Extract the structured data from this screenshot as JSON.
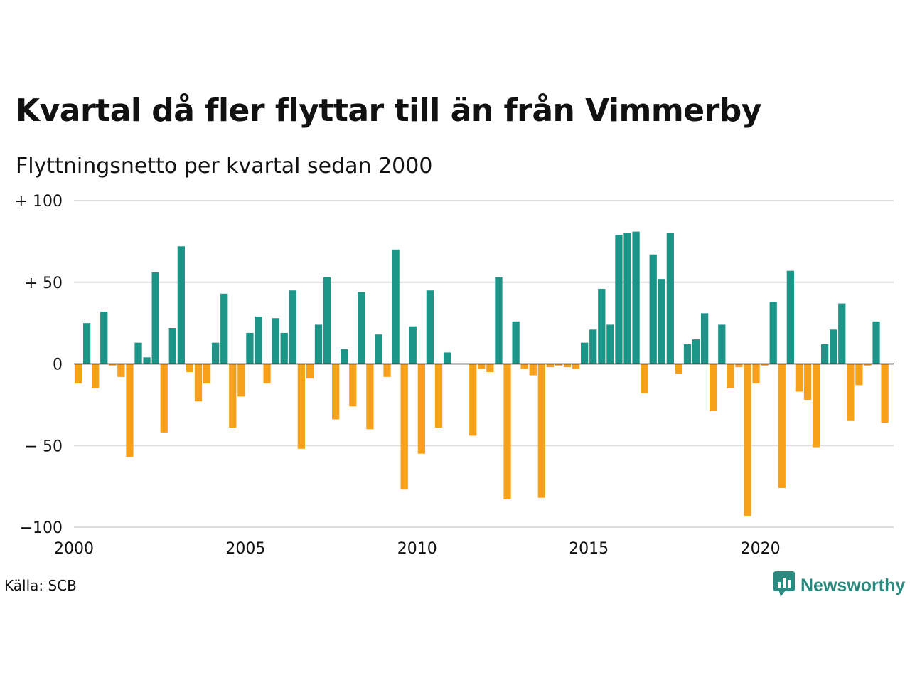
{
  "title": "Kvartal då fler flyttar till än från Vimmerby",
  "subtitle": "Flyttningsnetto per kvartal sedan 2000",
  "source": "Källa: SCB",
  "logo": {
    "text": "Newsworthy",
    "icon": "newsworthy-chart-icon"
  },
  "colors": {
    "positive": "#1a9588",
    "negative": "#f7a11b",
    "grid": "#dddddd",
    "zero": "#111111",
    "brand": "#2a8a80"
  },
  "chart_data": {
    "type": "bar",
    "xlabel": "",
    "ylabel": "",
    "ylim": [
      -100,
      100
    ],
    "yticks": [
      {
        "value": 100,
        "label": "+ 100"
      },
      {
        "value": 50,
        "label": "+  50"
      },
      {
        "value": 0,
        "label": "0"
      },
      {
        "value": -50,
        "label": "− 50"
      },
      {
        "value": -100,
        "label": "−100"
      }
    ],
    "xticks": [
      "2000",
      "2005",
      "2010",
      "2015",
      "2020"
    ],
    "start_year": 2000,
    "grid": true,
    "legend": "none",
    "values": [
      -12,
      25,
      -15,
      32,
      -1,
      -8,
      -57,
      13,
      4,
      56,
      -42,
      22,
      72,
      -5,
      -23,
      -12,
      13,
      43,
      -39,
      -20,
      19,
      29,
      -12,
      28,
      19,
      45,
      -52,
      -9,
      24,
      53,
      -34,
      9,
      -26,
      44,
      -40,
      18,
      -8,
      70,
      -77,
      23,
      -55,
      45,
      -39,
      7,
      0,
      0,
      -44,
      -3,
      -5,
      53,
      -83,
      26,
      -3,
      -7,
      -82,
      -2,
      -1,
      -2,
      -3,
      13,
      21,
      46,
      24,
      79,
      80,
      81,
      -18,
      67,
      52,
      80,
      -6,
      12,
      15,
      31,
      -29,
      24,
      -15,
      -2,
      -93,
      -12,
      -1,
      38,
      -76,
      57,
      -17,
      -22,
      -51,
      12,
      21,
      37,
      -35,
      -13,
      -1,
      26,
      -36
    ]
  }
}
